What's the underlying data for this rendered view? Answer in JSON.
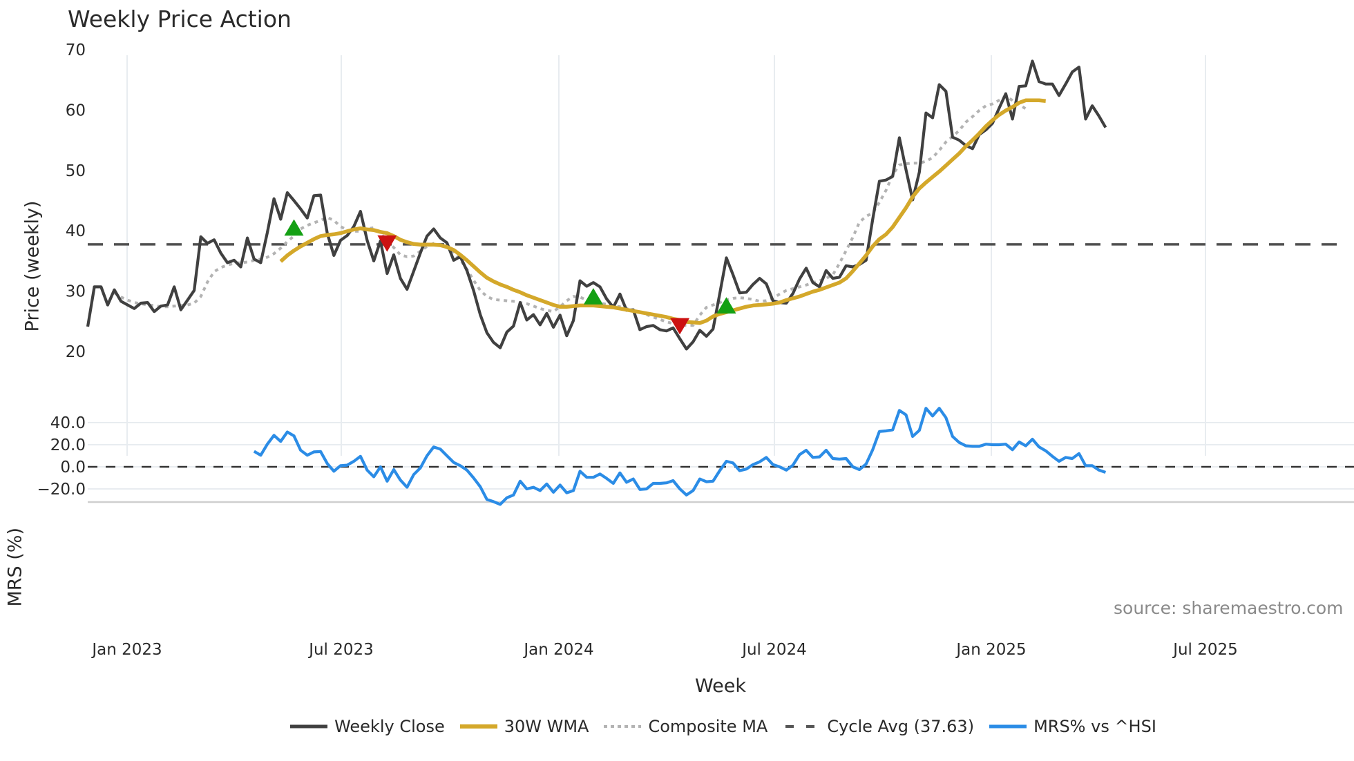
{
  "title": "Weekly Price Action",
  "source_label": "source: sharemaestro.com",
  "xlabel": "Week",
  "price_panel": {
    "ylabel": "Price (weekly)",
    "yticks": [
      "70",
      "60",
      "50",
      "40",
      "30",
      "20"
    ],
    "ytick_values": [
      70,
      60,
      50,
      40,
      30,
      20
    ]
  },
  "mrs_panel": {
    "ylabel": "MRS (%)",
    "yticks": [
      "40.0",
      "20.0",
      "0.0",
      "−20.0"
    ],
    "ytick_values": [
      40,
      20,
      0,
      -20
    ]
  },
  "xticks": [
    "Jan 2023",
    "Jul 2023",
    "Jan 2024",
    "Jul 2024",
    "Jan 2025",
    "Jul 2025"
  ],
  "legend": [
    {
      "label": "Weekly Close",
      "color": "#404040",
      "style": "solid"
    },
    {
      "label": "30W WMA",
      "color": "#d4a82a",
      "style": "solid"
    },
    {
      "label": "Composite MA",
      "color": "#b3b3b3",
      "style": "dotted"
    },
    {
      "label": "Cycle Avg (37.63)",
      "color": "#555555",
      "style": "dashed"
    },
    {
      "label": "MRS% vs ^HSI",
      "color": "#2b8ce6",
      "style": "solid"
    }
  ],
  "colors": {
    "close": "#404040",
    "wma": "#d4a82a",
    "composite": "#b3b3b3",
    "cycle": "#505050",
    "mrs": "#2b8ce6",
    "buy_marker": "#14a014",
    "sell_marker": "#cc1111",
    "grid": "#e8ecf0"
  },
  "chart_data": [
    {
      "type": "line",
      "title": "Weekly Price Action",
      "xlabel": "Week",
      "ylabel": "Price (weekly)",
      "ylim": [
        18,
        71
      ],
      "x_ticks": [
        "Jan 2023",
        "Jul 2023",
        "Jan 2024",
        "Jul 2024",
        "Jan 2025",
        "Jul 2025"
      ],
      "x_start": "2022-12-05",
      "x_step": "1 week",
      "series": [
        {
          "name": "Weekly Close",
          "values": [
            24.0,
            30.6,
            30.6,
            27.6,
            30.1,
            28.2,
            27.6,
            27.0,
            27.9,
            28.0,
            26.5,
            27.4,
            27.6,
            30.6,
            26.8,
            28.4,
            30.0,
            38.9,
            37.8,
            38.4,
            36.2,
            34.6,
            35.0,
            33.9,
            38.7,
            35.2,
            34.6,
            39.6,
            45.2,
            41.8,
            46.2,
            44.9,
            43.5,
            42.0,
            45.7,
            45.8,
            39.5,
            35.8,
            38.3,
            39.1,
            40.6,
            43.1,
            38.3,
            34.9,
            38.2,
            32.8,
            35.9,
            32.0,
            30.2,
            33.2,
            36.2,
            39.0,
            40.2,
            38.7,
            37.9,
            35.0,
            35.6,
            33.3,
            30.0,
            26.0,
            23.0,
            21.4,
            20.5,
            23.1,
            24.1,
            28.0,
            25.1,
            26.0,
            24.3,
            26.2,
            23.9,
            25.9,
            22.5,
            25.0,
            31.6,
            30.7,
            31.3,
            30.6,
            28.6,
            27.2,
            29.4,
            26.7,
            26.8,
            23.5,
            24.0,
            24.2,
            23.5,
            23.3,
            23.8,
            22.0,
            20.3,
            21.5,
            23.4,
            22.4,
            23.6,
            29.4,
            35.4,
            32.6,
            29.6,
            29.7,
            31.0,
            32.0,
            31.1,
            28.3,
            28.0,
            27.9,
            29.5,
            31.9,
            33.7,
            31.3,
            30.6,
            33.3,
            32.0,
            32.2,
            34.1,
            33.9,
            34.3,
            35.0,
            41.8,
            48.1,
            48.3,
            48.9,
            55.3,
            50.0,
            45.0,
            49.6,
            59.4,
            58.6,
            64.1,
            63.0,
            55.4,
            54.9,
            54.0,
            53.5,
            55.8,
            56.6,
            57.7,
            60.2,
            62.6,
            58.4,
            63.8,
            63.9,
            68.0,
            64.6,
            64.2,
            64.2,
            62.3,
            64.2,
            66.2,
            67.0,
            58.4,
            60.6,
            58.9,
            57.0
          ]
        },
        {
          "name": "30W WMA",
          "start_index": 29,
          "values": [
            34.8,
            35.8,
            36.6,
            37.3,
            37.9,
            38.5,
            39.0,
            39.2,
            39.3,
            39.5,
            39.8,
            40.1,
            40.3,
            40.1,
            40.0,
            39.7,
            39.5,
            39.0,
            38.4,
            38.0,
            37.7,
            37.6,
            37.6,
            37.6,
            37.5,
            37.2,
            36.7,
            35.9,
            35.0,
            34.0,
            33.0,
            32.1,
            31.5,
            31.0,
            30.6,
            30.1,
            29.7,
            29.2,
            28.8,
            28.4,
            28.0,
            27.6,
            27.3,
            27.3,
            27.4,
            27.5,
            27.5,
            27.5,
            27.4,
            27.3,
            27.2,
            27.0,
            26.8,
            26.6,
            26.4,
            26.2,
            26.0,
            25.8,
            25.6,
            25.3,
            25.1,
            24.8,
            24.7,
            24.6,
            25.0,
            25.7,
            26.1,
            26.4,
            26.7,
            27.0,
            27.3,
            27.5,
            27.6,
            27.7,
            27.8,
            28.0,
            28.4,
            28.7,
            29.0,
            29.4,
            29.8,
            30.1,
            30.5,
            30.9,
            31.3,
            32.0,
            33.2,
            34.5,
            35.8,
            37.3,
            38.5,
            39.3,
            40.5,
            42.1,
            43.7,
            45.5,
            46.9,
            47.9,
            48.8,
            49.7,
            50.7,
            51.7,
            52.7,
            53.9,
            54.9,
            56.0,
            57.2,
            58.2,
            59.1,
            59.8,
            60.4,
            61.1,
            61.5,
            61.5,
            61.5,
            61.4
          ]
        },
        {
          "name": "Composite MA",
          "start_index": 4,
          "values": [
            29.6,
            28.9,
            28.4,
            28.0,
            27.8,
            27.6,
            27.5,
            27.3,
            27.3,
            27.4,
            27.5,
            27.6,
            27.9,
            29.0,
            31.4,
            33.1,
            33.8,
            34.2,
            34.5,
            34.6,
            34.7,
            35.0,
            35.2,
            35.5,
            36.1,
            37.0,
            38.1,
            39.0,
            40.2,
            40.8,
            41.2,
            41.6,
            42.1,
            41.6,
            40.6,
            40.0,
            39.8,
            39.8,
            40.2,
            40.4,
            39.4,
            38.4,
            37.1,
            35.9,
            35.6,
            35.7,
            36.5,
            37.3,
            37.8,
            37.5,
            37.1,
            36.4,
            35.1,
            33.5,
            31.7,
            30.0,
            29.0,
            28.5,
            28.4,
            28.3,
            28.2,
            28.0,
            27.8,
            27.4,
            27.0,
            26.7,
            26.5,
            27.3,
            28.3,
            29.0,
            28.9,
            28.4,
            28.0,
            27.9,
            27.7,
            27.5,
            27.3,
            27.0,
            26.7,
            26.4,
            26.0,
            25.6,
            25.2,
            24.8,
            24.5,
            24.3,
            24.2,
            24.2,
            25.9,
            27.2,
            27.6,
            28.0,
            28.4,
            28.7,
            28.8,
            28.7,
            28.5,
            28.2,
            28.3,
            28.7,
            29.4,
            30.0,
            30.3,
            30.6,
            30.9,
            31.3,
            31.6,
            32.0,
            32.6,
            34.5,
            36.6,
            38.8,
            41.3,
            42.3,
            42.8,
            44.6,
            46.6,
            49.2,
            50.8,
            51.0,
            51.1,
            51.1,
            51.4,
            52.0,
            53.2,
            54.6,
            55.5,
            56.5,
            57.9,
            58.8,
            59.8,
            60.6,
            60.9,
            61.5,
            62.2,
            61.5,
            60.8,
            60.1
          ]
        },
        {
          "name": "Cycle Avg (37.63)",
          "style": "dashed",
          "constant": 37.63
        }
      ],
      "markers": [
        {
          "type": "buy",
          "shape": "triangle-up",
          "index": 31,
          "value": 40.2
        },
        {
          "type": "sell",
          "shape": "triangle-down",
          "index": 45,
          "value": 38.0
        },
        {
          "type": "buy",
          "shape": "triangle-up",
          "index": 76,
          "value": 28.8
        },
        {
          "type": "sell",
          "shape": "triangle-down",
          "index": 89,
          "value": 24.3
        },
        {
          "type": "buy",
          "shape": "triangle-up",
          "index": 96,
          "value": 27.3
        }
      ]
    },
    {
      "type": "line",
      "title": "",
      "xlabel": "Week",
      "ylabel": "MRS (%)",
      "ylim": [
        -38,
        59
      ],
      "y_ticks": [
        40,
        20,
        0,
        -20
      ],
      "reference_line": 0,
      "series": [
        {
          "name": "MRS% vs ^HSI",
          "start_index": 25,
          "values": [
            14.0,
            10.5,
            20.5,
            28.5,
            23.0,
            31.5,
            28.0,
            15.0,
            10.5,
            13.5,
            13.8,
            3.0,
            -4.0,
            1.0,
            1.5,
            5.0,
            9.5,
            -3.0,
            -9.0,
            0.0,
            -13.0,
            -2.5,
            -12.0,
            -18.5,
            -7.0,
            -1.0,
            10.0,
            18.0,
            16.0,
            10.0,
            4.0,
            1.0,
            -3.0,
            -10.0,
            -18.0,
            -29.5,
            -31.5,
            -34.0,
            -28.0,
            -25.5,
            -13.0,
            -20.0,
            -18.5,
            -21.5,
            -15.5,
            -23.0,
            -16.5,
            -23.5,
            -21.5,
            -4.0,
            -9.5,
            -9.5,
            -6.5,
            -10.5,
            -15.0,
            -5.5,
            -14.0,
            -11.0,
            -20.5,
            -20.0,
            -15.0,
            -15.0,
            -14.5,
            -12.5,
            -20.0,
            -25.5,
            -21.5,
            -11.0,
            -13.5,
            -13.0,
            -3.5,
            5.0,
            3.5,
            -3.5,
            -2.0,
            2.0,
            4.5,
            8.5,
            2.0,
            0.0,
            -3.0,
            1.5,
            11.0,
            15.0,
            8.5,
            9.0,
            15.0,
            7.5,
            7.0,
            7.5,
            0.0,
            -2.5,
            2.5,
            15.5,
            32.0,
            32.5,
            33.5,
            51.0,
            47.0,
            27.5,
            33.0,
            53.0,
            46.0,
            53.0,
            44.5,
            27.5,
            22.0,
            19.0,
            18.5,
            18.5,
            20.5,
            20.0,
            20.0,
            20.5,
            15.5,
            22.5,
            19.0,
            25.0,
            18.0,
            14.5,
            9.5,
            5.0,
            8.5,
            7.5,
            12.0,
            1.0,
            1.0,
            -3.0,
            -5.0
          ]
        }
      ]
    }
  ]
}
